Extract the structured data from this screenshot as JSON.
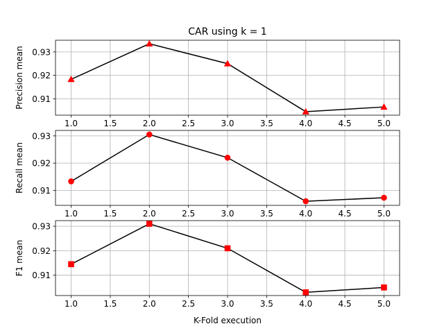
{
  "chart_data": [
    {
      "type": "line",
      "title": "CAR using k = 1",
      "xlabel": "",
      "ylabel": "Precision mean",
      "x": [
        1.0,
        2.0,
        3.0,
        4.0,
        5.0
      ],
      "series": [
        {
          "values": [
            0.9183,
            0.9335,
            0.925,
            0.9045,
            0.9065
          ],
          "marker": "triangle",
          "marker_color": "#ff0000",
          "line_color": "#000000"
        }
      ],
      "xlim": [
        0.8,
        5.2
      ],
      "ylim": [
        0.903,
        0.935
      ],
      "xticks": [
        "1.0",
        "1.5",
        "2.0",
        "2.5",
        "3.0",
        "3.5",
        "4.0",
        "4.5",
        "5.0"
      ],
      "yticks": [
        "0.91",
        "0.92",
        "0.93"
      ],
      "grid": true
    },
    {
      "type": "line",
      "title": "",
      "xlabel": "",
      "ylabel": "Recall mean",
      "x": [
        1.0,
        2.0,
        3.0,
        4.0,
        5.0
      ],
      "series": [
        {
          "values": [
            0.9133,
            0.9305,
            0.922,
            0.906,
            0.9073
          ],
          "marker": "circle",
          "marker_color": "#ff0000",
          "line_color": "#000000"
        }
      ],
      "xlim": [
        0.8,
        5.2
      ],
      "ylim": [
        0.9045,
        0.932
      ],
      "xticks": [
        "1.0",
        "1.5",
        "2.0",
        "2.5",
        "3.0",
        "3.5",
        "4.0",
        "4.5",
        "5.0"
      ],
      "yticks": [
        "0.91",
        "0.92",
        "0.93"
      ],
      "grid": true
    },
    {
      "type": "line",
      "title": "",
      "xlabel": "K-Fold execution",
      "ylabel": "F1 mean",
      "x": [
        1.0,
        2.0,
        3.0,
        4.0,
        5.0
      ],
      "series": [
        {
          "values": [
            0.9145,
            0.931,
            0.921,
            0.903,
            0.905
          ],
          "marker": "square",
          "marker_color": "#ff0000",
          "line_color": "#000000"
        }
      ],
      "xlim": [
        0.8,
        5.2
      ],
      "ylim": [
        0.9017,
        0.9323
      ],
      "xticks": [
        "1.0",
        "1.5",
        "2.0",
        "2.5",
        "3.0",
        "3.5",
        "4.0",
        "4.5",
        "5.0"
      ],
      "yticks": [
        "0.91",
        "0.92",
        "0.93"
      ],
      "grid": true
    }
  ]
}
